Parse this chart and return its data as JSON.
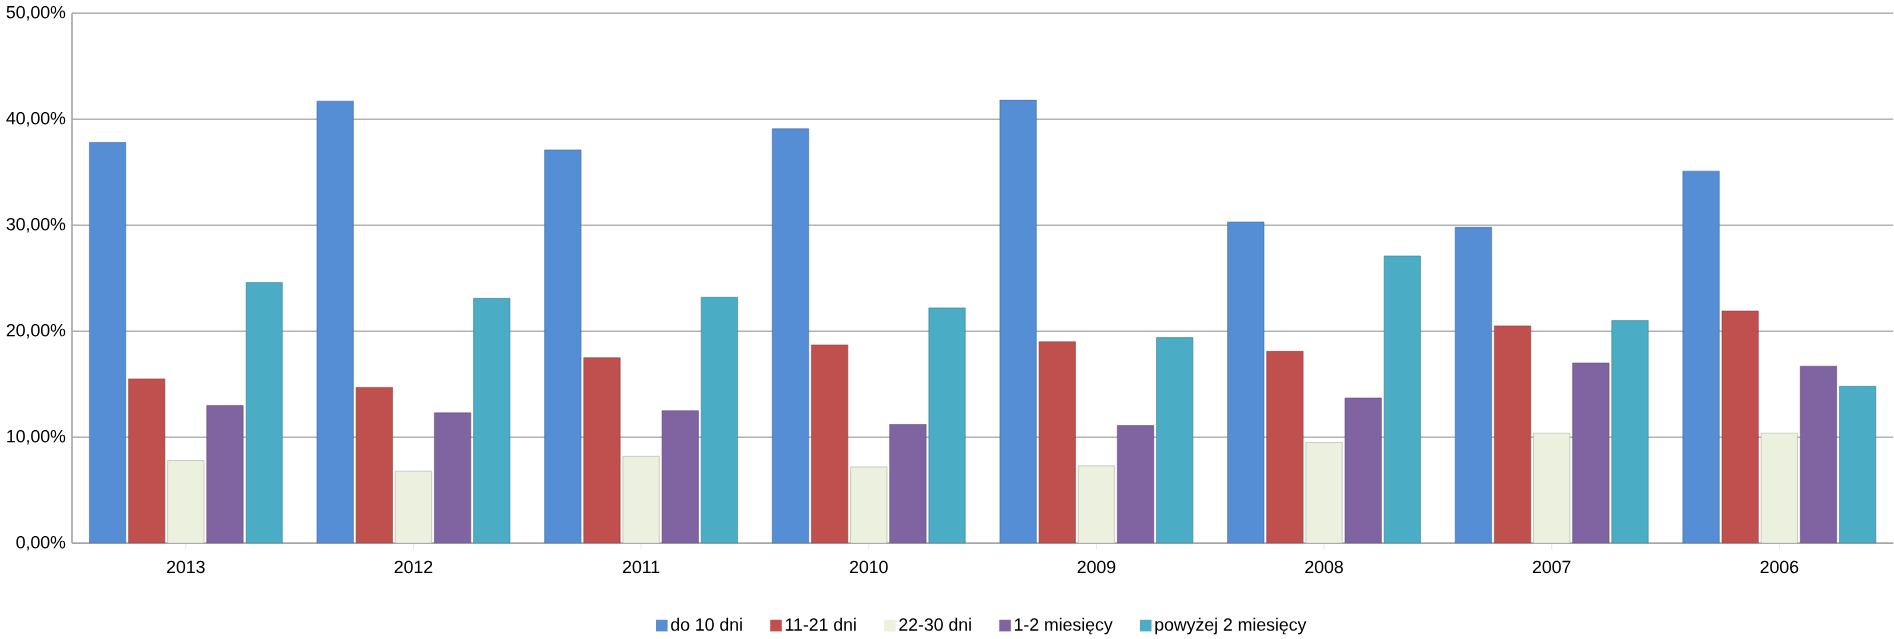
{
  "chart_data": {
    "type": "bar",
    "categories": [
      "2013",
      "2012",
      "2011",
      "2010",
      "2009",
      "2008",
      "2007",
      "2006"
    ],
    "series": [
      {
        "name": "do 10 dni",
        "color": "#558ed5",
        "values": [
          37.8,
          41.7,
          37.1,
          39.1,
          41.8,
          30.3,
          29.8,
          35.1
        ]
      },
      {
        "name": "11-21 dni",
        "color": "#c0504d",
        "values": [
          15.5,
          14.7,
          17.5,
          18.7,
          19.0,
          18.1,
          20.5,
          21.9
        ]
      },
      {
        "name": "22-30 dni",
        "color": "#ebf1de",
        "values": [
          7.8,
          6.8,
          8.2,
          7.2,
          7.3,
          9.5,
          10.4,
          10.4
        ]
      },
      {
        "name": "1-2 miesięcy",
        "color": "#8064a2",
        "values": [
          13.0,
          12.3,
          12.5,
          11.2,
          11.1,
          13.7,
          17.0,
          16.7
        ]
      },
      {
        "name": "powyżej 2 miesięcy",
        "color": "#4bacc6",
        "values": [
          24.6,
          23.1,
          23.2,
          22.2,
          19.4,
          27.1,
          21.0,
          14.8
        ]
      }
    ],
    "ylim": [
      0,
      50
    ],
    "yticks": [
      {
        "value": 0,
        "label": "0,00%"
      },
      {
        "value": 10,
        "label": "10,00%"
      },
      {
        "value": 20,
        "label": "20,00%"
      },
      {
        "value": 30,
        "label": "30,00%"
      },
      {
        "value": 40,
        "label": "40,00%"
      },
      {
        "value": 50,
        "label": "50,00%"
      }
    ],
    "grid": "y",
    "legend": "bottom"
  }
}
